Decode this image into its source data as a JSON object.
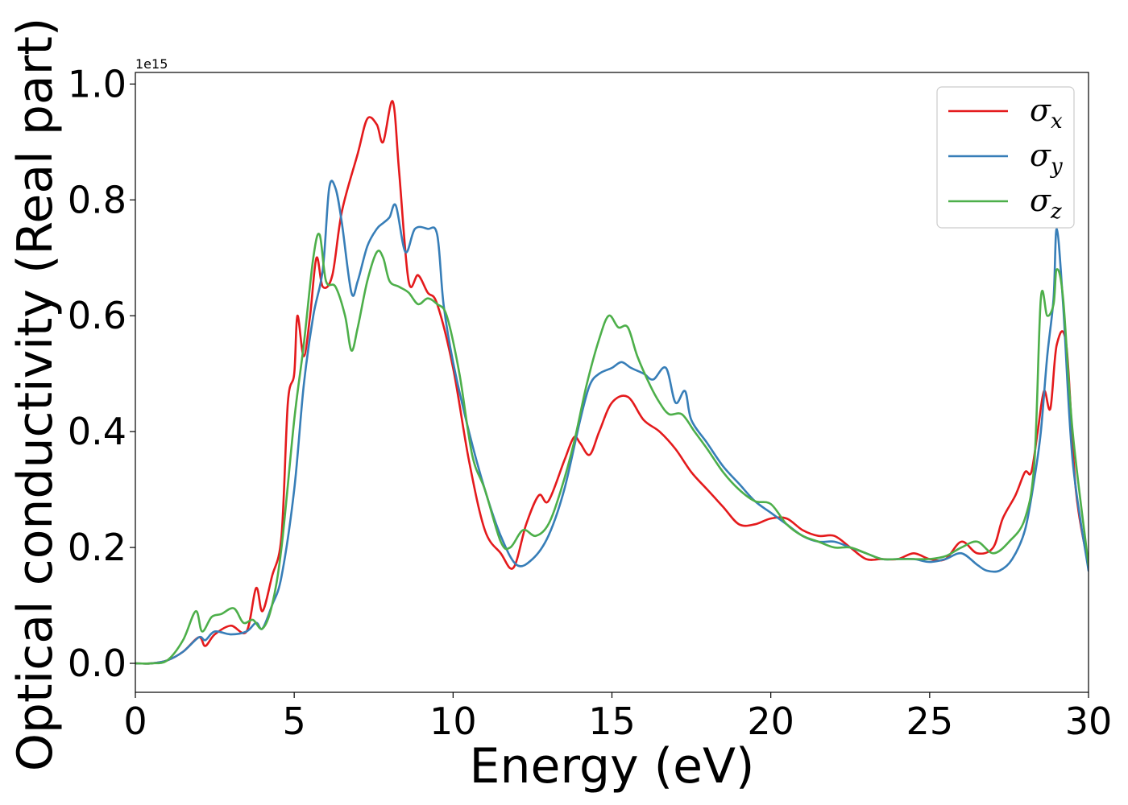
{
  "chart_data": {
    "type": "line",
    "xlabel": "Energy (eV)",
    "ylabel": "Optical conductivity (Real part)",
    "y_offset_label": "1e15",
    "xlim": [
      0,
      30
    ],
    "ylim": [
      -0.05,
      1.02
    ],
    "xticks": [
      0,
      5,
      10,
      15,
      20,
      25,
      30
    ],
    "xtick_labels": [
      "0",
      "5",
      "10",
      "15",
      "20",
      "25",
      "30"
    ],
    "yticks": [
      0.0,
      0.2,
      0.4,
      0.6,
      0.8,
      1.0
    ],
    "ytick_labels": [
      "0.0",
      "0.2",
      "0.4",
      "0.6",
      "0.8",
      "1.0"
    ],
    "grid": false,
    "legend_position": "top-right",
    "series": [
      {
        "name": "σx",
        "symbol": "σ",
        "subscript": "x",
        "color": "#e41a1c",
        "x": [
          0,
          0.5,
          1.0,
          1.5,
          2.0,
          2.2,
          2.5,
          3.0,
          3.5,
          3.8,
          4.0,
          4.3,
          4.6,
          4.8,
          5.0,
          5.1,
          5.3,
          5.5,
          5.7,
          5.9,
          6.2,
          6.5,
          7.0,
          7.3,
          7.6,
          7.8,
          8.1,
          8.3,
          8.6,
          8.9,
          9.2,
          9.5,
          10.0,
          10.5,
          11.0,
          11.5,
          11.9,
          12.3,
          12.7,
          13.0,
          13.5,
          13.8,
          14.0,
          14.3,
          14.6,
          15.0,
          15.5,
          16.0,
          16.5,
          17.0,
          17.5,
          18.0,
          18.5,
          19.0,
          19.5,
          20.0,
          20.5,
          21.0,
          21.5,
          22.0,
          22.5,
          23.0,
          23.5,
          24.0,
          24.5,
          25.0,
          25.5,
          26.0,
          26.5,
          27.0,
          27.3,
          27.7,
          28.0,
          28.2,
          28.4,
          28.6,
          28.8,
          29.0,
          29.3,
          29.6,
          30.0
        ],
        "y": [
          0.0,
          0.0,
          0.005,
          0.02,
          0.045,
          0.03,
          0.05,
          0.065,
          0.055,
          0.13,
          0.09,
          0.15,
          0.22,
          0.45,
          0.5,
          0.6,
          0.53,
          0.6,
          0.7,
          0.65,
          0.67,
          0.78,
          0.88,
          0.94,
          0.93,
          0.9,
          0.97,
          0.85,
          0.66,
          0.67,
          0.64,
          0.62,
          0.51,
          0.35,
          0.23,
          0.19,
          0.165,
          0.24,
          0.29,
          0.28,
          0.35,
          0.39,
          0.38,
          0.36,
          0.4,
          0.45,
          0.46,
          0.42,
          0.4,
          0.37,
          0.33,
          0.3,
          0.27,
          0.24,
          0.24,
          0.25,
          0.25,
          0.23,
          0.22,
          0.22,
          0.2,
          0.18,
          0.18,
          0.18,
          0.19,
          0.18,
          0.18,
          0.21,
          0.19,
          0.2,
          0.25,
          0.29,
          0.33,
          0.33,
          0.4,
          0.47,
          0.44,
          0.55,
          0.55,
          0.3,
          0.17
        ]
      },
      {
        "name": "σy",
        "symbol": "σ",
        "subscript": "y",
        "color": "#377eb8",
        "x": [
          0,
          0.5,
          1.0,
          1.5,
          2.0,
          2.2,
          2.5,
          3.0,
          3.5,
          3.8,
          4.0,
          4.3,
          4.6,
          5.0,
          5.3,
          5.6,
          5.9,
          6.1,
          6.3,
          6.5,
          6.8,
          7.0,
          7.3,
          7.6,
          7.8,
          8.0,
          8.2,
          8.5,
          8.8,
          9.2,
          9.5,
          9.7,
          10.0,
          10.5,
          11.0,
          11.5,
          12.0,
          12.5,
          13.0,
          13.5,
          14.0,
          14.3,
          14.6,
          15.0,
          15.3,
          15.6,
          16.0,
          16.3,
          16.7,
          17.0,
          17.3,
          17.5,
          18.0,
          18.5,
          19.0,
          19.5,
          20.0,
          20.5,
          21.0,
          21.5,
          22.0,
          22.5,
          23.0,
          23.5,
          24.0,
          24.5,
          25.0,
          25.5,
          26.0,
          26.5,
          26.8,
          27.2,
          27.6,
          28.0,
          28.3,
          28.5,
          28.7,
          28.9,
          29.0,
          29.2,
          29.5,
          30.0
        ],
        "y": [
          0.0,
          0.0,
          0.005,
          0.02,
          0.045,
          0.04,
          0.055,
          0.05,
          0.055,
          0.07,
          0.06,
          0.1,
          0.15,
          0.3,
          0.48,
          0.6,
          0.68,
          0.82,
          0.82,
          0.76,
          0.64,
          0.66,
          0.72,
          0.75,
          0.76,
          0.77,
          0.79,
          0.71,
          0.75,
          0.75,
          0.74,
          0.62,
          0.52,
          0.4,
          0.3,
          0.22,
          0.17,
          0.18,
          0.22,
          0.3,
          0.42,
          0.48,
          0.5,
          0.51,
          0.52,
          0.51,
          0.5,
          0.49,
          0.51,
          0.45,
          0.47,
          0.42,
          0.38,
          0.34,
          0.31,
          0.28,
          0.26,
          0.24,
          0.22,
          0.21,
          0.21,
          0.2,
          0.19,
          0.18,
          0.18,
          0.18,
          0.175,
          0.18,
          0.19,
          0.17,
          0.16,
          0.16,
          0.18,
          0.23,
          0.32,
          0.4,
          0.53,
          0.63,
          0.75,
          0.62,
          0.35,
          0.16
        ]
      },
      {
        "name": "σz",
        "symbol": "σ",
        "subscript": "z",
        "color": "#4daf4a",
        "x": [
          0,
          0.5,
          1.0,
          1.5,
          1.9,
          2.1,
          2.4,
          2.7,
          3.1,
          3.4,
          3.7,
          4.0,
          4.3,
          4.6,
          5.0,
          5.3,
          5.6,
          5.8,
          6.0,
          6.3,
          6.6,
          6.8,
          7.0,
          7.3,
          7.6,
          7.8,
          8.0,
          8.3,
          8.6,
          8.9,
          9.2,
          9.5,
          9.8,
          10.2,
          10.6,
          11.0,
          11.5,
          11.8,
          12.2,
          12.6,
          13.0,
          13.4,
          13.8,
          14.2,
          14.6,
          14.9,
          15.2,
          15.5,
          15.8,
          16.2,
          16.5,
          16.8,
          17.2,
          17.6,
          18.0,
          18.5,
          19.0,
          19.5,
          20.0,
          20.5,
          21.0,
          21.5,
          22.0,
          22.5,
          23.0,
          23.5,
          24.0,
          24.5,
          25.0,
          25.5,
          26.0,
          26.5,
          27.0,
          27.5,
          28.0,
          28.3,
          28.5,
          28.7,
          28.9,
          29.0,
          29.2,
          29.5,
          30.0
        ],
        "y": [
          0.0,
          0.0,
          0.005,
          0.04,
          0.09,
          0.055,
          0.08,
          0.085,
          0.095,
          0.07,
          0.075,
          0.06,
          0.1,
          0.2,
          0.42,
          0.55,
          0.7,
          0.74,
          0.66,
          0.65,
          0.6,
          0.54,
          0.58,
          0.66,
          0.71,
          0.7,
          0.66,
          0.65,
          0.64,
          0.62,
          0.63,
          0.62,
          0.6,
          0.5,
          0.36,
          0.3,
          0.21,
          0.2,
          0.23,
          0.22,
          0.24,
          0.3,
          0.38,
          0.48,
          0.56,
          0.6,
          0.58,
          0.58,
          0.53,
          0.48,
          0.45,
          0.43,
          0.43,
          0.4,
          0.37,
          0.33,
          0.3,
          0.28,
          0.275,
          0.24,
          0.22,
          0.21,
          0.2,
          0.2,
          0.19,
          0.18,
          0.18,
          0.18,
          0.18,
          0.185,
          0.2,
          0.21,
          0.19,
          0.21,
          0.25,
          0.35,
          0.63,
          0.6,
          0.62,
          0.68,
          0.63,
          0.4,
          0.17
        ]
      }
    ]
  }
}
